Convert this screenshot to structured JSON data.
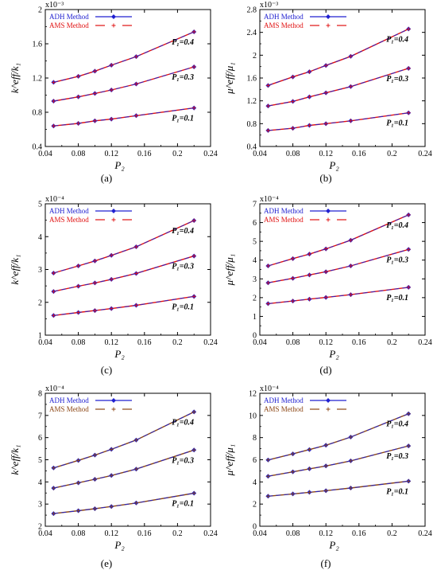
{
  "colors": {
    "adh": "#2020d0",
    "ams": "#e01010",
    "ams_brown": "#8b4513",
    "axis": "#000000"
  },
  "chart_data": [
    {
      "type": "line",
      "panel_label": "(a)",
      "exponent": "x10⁻³",
      "ylabel": "k^eff/k₁",
      "xlabel": "P₂",
      "xlim": [
        0.04,
        0.24
      ],
      "ylim": [
        0.4,
        2.0
      ],
      "xticks": [
        0.04,
        0.08,
        0.12,
        0.16,
        0.2,
        0.24
      ],
      "xtick_labels": [
        "0.04",
        "0.08",
        "0.12",
        "0.16",
        "0.2",
        "0.24"
      ],
      "yticks": [
        0.4,
        0.8,
        1.2,
        1.6,
        2.0
      ],
      "ytick_labels": [
        "0.4",
        "0.8",
        "1.2",
        "1.6",
        "2"
      ],
      "legend": [
        "ADH Method",
        "AMS Method"
      ],
      "x": [
        0.05,
        0.08,
        0.1,
        0.12,
        0.15,
        0.22
      ],
      "series": [
        {
          "name": "P₁=0.1",
          "values": [
            0.64,
            0.67,
            0.7,
            0.72,
            0.76,
            0.85
          ]
        },
        {
          "name": "P₁=0.3",
          "values": [
            0.93,
            0.98,
            1.02,
            1.06,
            1.13,
            1.33
          ]
        },
        {
          "name": "P₁=0.4",
          "values": [
            1.15,
            1.22,
            1.28,
            1.35,
            1.45,
            1.74
          ]
        }
      ]
    },
    {
      "type": "line",
      "panel_label": "(b)",
      "exponent": "x10⁻³",
      "ylabel": "μ^eff/μ₁",
      "xlabel": "P₂",
      "xlim": [
        0.04,
        0.24
      ],
      "ylim": [
        0.4,
        2.8
      ],
      "xticks": [
        0.04,
        0.08,
        0.12,
        0.16,
        0.2,
        0.24
      ],
      "xtick_labels": [
        "0.04",
        "0.08",
        "0.12",
        "0.16",
        "0.2",
        "0.24"
      ],
      "yticks": [
        0.4,
        0.8,
        1.2,
        1.6,
        2.0,
        2.4,
        2.8
      ],
      "ytick_labels": [
        "0.4",
        "0.8",
        "1.2",
        "1.6",
        "2",
        "2.4",
        "2.8"
      ],
      "legend": [
        "ADH Method",
        "AMS Method"
      ],
      "x": [
        0.05,
        0.08,
        0.1,
        0.12,
        0.15,
        0.22
      ],
      "series": [
        {
          "name": "P₁=0.1",
          "values": [
            0.68,
            0.72,
            0.77,
            0.8,
            0.85,
            0.99
          ]
        },
        {
          "name": "P₁=0.3",
          "values": [
            1.11,
            1.19,
            1.27,
            1.34,
            1.45,
            1.77
          ]
        },
        {
          "name": "P₁=0.4",
          "values": [
            1.47,
            1.62,
            1.71,
            1.82,
            1.98,
            2.46
          ]
        }
      ]
    },
    {
      "type": "line",
      "panel_label": "(c)",
      "exponent": "x10⁻⁴",
      "ylabel": "k^eff/k₁",
      "xlabel": "P₂",
      "xlim": [
        0.04,
        0.24
      ],
      "ylim": [
        1,
        5
      ],
      "xticks": [
        0.04,
        0.08,
        0.12,
        0.16,
        0.2,
        0.24
      ],
      "xtick_labels": [
        "0.04",
        "0.08",
        "0.12",
        "0.16",
        "0.2",
        "0.24"
      ],
      "yticks": [
        1,
        2,
        3,
        4,
        5
      ],
      "ytick_labels": [
        "1",
        "2",
        "3",
        "4",
        "5"
      ],
      "legend": [
        "ADH Method",
        "AMS Method"
      ],
      "x": [
        0.05,
        0.08,
        0.1,
        0.12,
        0.15,
        0.22
      ],
      "series": [
        {
          "name": "P₁=0.1",
          "values": [
            1.6,
            1.69,
            1.75,
            1.81,
            1.91,
            2.18
          ]
        },
        {
          "name": "P₁=0.3",
          "values": [
            2.33,
            2.49,
            2.59,
            2.7,
            2.88,
            3.41
          ]
        },
        {
          "name": "P₁=0.4",
          "values": [
            2.89,
            3.11,
            3.26,
            3.43,
            3.69,
            4.49
          ]
        }
      ]
    },
    {
      "type": "line",
      "panel_label": "(d)",
      "exponent": "x10⁻⁴",
      "ylabel": "μ^eff/μ₁",
      "xlabel": "P₂",
      "xlim": [
        0.04,
        0.24
      ],
      "ylim": [
        0,
        7
      ],
      "xticks": [
        0.04,
        0.08,
        0.12,
        0.16,
        0.2,
        0.24
      ],
      "xtick_labels": [
        "0.04",
        "0.08",
        "0.12",
        "0.16",
        "0.2",
        "0.24"
      ],
      "yticks": [
        0,
        1,
        2,
        3,
        4,
        5,
        6,
        7
      ],
      "ytick_labels": [
        "0",
        "1",
        "2",
        "3",
        "4",
        "5",
        "6",
        "7"
      ],
      "legend": [
        "ADH Method",
        "AMS Method"
      ],
      "x": [
        0.05,
        0.08,
        0.1,
        0.12,
        0.15,
        0.22
      ],
      "series": [
        {
          "name": "P₁=0.1",
          "values": [
            1.68,
            1.82,
            1.92,
            2.01,
            2.16,
            2.55
          ]
        },
        {
          "name": "P₁=0.3",
          "values": [
            2.79,
            3.03,
            3.21,
            3.38,
            3.69,
            4.57
          ]
        },
        {
          "name": "P₁=0.4",
          "values": [
            3.69,
            4.08,
            4.32,
            4.6,
            5.06,
            6.41
          ]
        }
      ]
    },
    {
      "type": "line",
      "panel_label": "(e)",
      "exponent": "x10⁻⁴",
      "ylabel": "k^eff/k₁",
      "xlabel": "P₂",
      "xlim": [
        0.04,
        0.24
      ],
      "ylim": [
        2,
        8
      ],
      "xticks": [
        0.04,
        0.08,
        0.12,
        0.16,
        0.2,
        0.24
      ],
      "xtick_labels": [
        "0.04",
        "0.08",
        "0.12",
        "0.16",
        "0.2",
        "0.24"
      ],
      "yticks": [
        2,
        3,
        4,
        5,
        6,
        7,
        8
      ],
      "ytick_labels": [
        "2",
        "3",
        "4",
        "5",
        "6",
        "7",
        "8"
      ],
      "legend": [
        "ADH Method",
        "AMS Method"
      ],
      "x": [
        0.05,
        0.08,
        0.1,
        0.12,
        0.15,
        0.22
      ],
      "series": [
        {
          "name": "P₁=0.1",
          "values": [
            2.57,
            2.7,
            2.79,
            2.89,
            3.05,
            3.49
          ]
        },
        {
          "name": "P₁=0.3",
          "values": [
            3.72,
            3.96,
            4.12,
            4.29,
            4.58,
            5.44
          ]
        },
        {
          "name": "P₁=0.4",
          "values": [
            4.63,
            4.97,
            5.21,
            5.47,
            5.89,
            7.16
          ]
        }
      ]
    },
    {
      "type": "line",
      "panel_label": "(f)",
      "exponent": "x10⁻⁴",
      "ylabel": "μ^eff/μ₁",
      "xlabel": "P₂",
      "xlim": [
        0.04,
        0.24
      ],
      "ylim": [
        0,
        12
      ],
      "xticks": [
        0.04,
        0.08,
        0.12,
        0.16,
        0.2,
        0.24
      ],
      "xtick_labels": [
        "0.04",
        "0.08",
        "0.12",
        "0.16",
        "0.2",
        "0.24"
      ],
      "yticks": [
        0,
        2,
        4,
        6,
        8,
        10,
        12
      ],
      "ytick_labels": [
        "0",
        "2",
        "4",
        "6",
        "8",
        "10",
        "12"
      ],
      "legend": [
        "ADH Method",
        "AMS Method"
      ],
      "x": [
        0.05,
        0.08,
        0.1,
        0.12,
        0.15,
        0.22
      ],
      "series": [
        {
          "name": "P₁=0.1",
          "values": [
            2.71,
            2.92,
            3.06,
            3.21,
            3.45,
            4.07
          ]
        },
        {
          "name": "P₁=0.3",
          "values": [
            4.51,
            4.91,
            5.18,
            5.44,
            5.9,
            7.25
          ]
        },
        {
          "name": "P₁=0.4",
          "values": [
            5.98,
            6.53,
            6.92,
            7.31,
            8.05,
            10.15
          ]
        }
      ]
    }
  ]
}
